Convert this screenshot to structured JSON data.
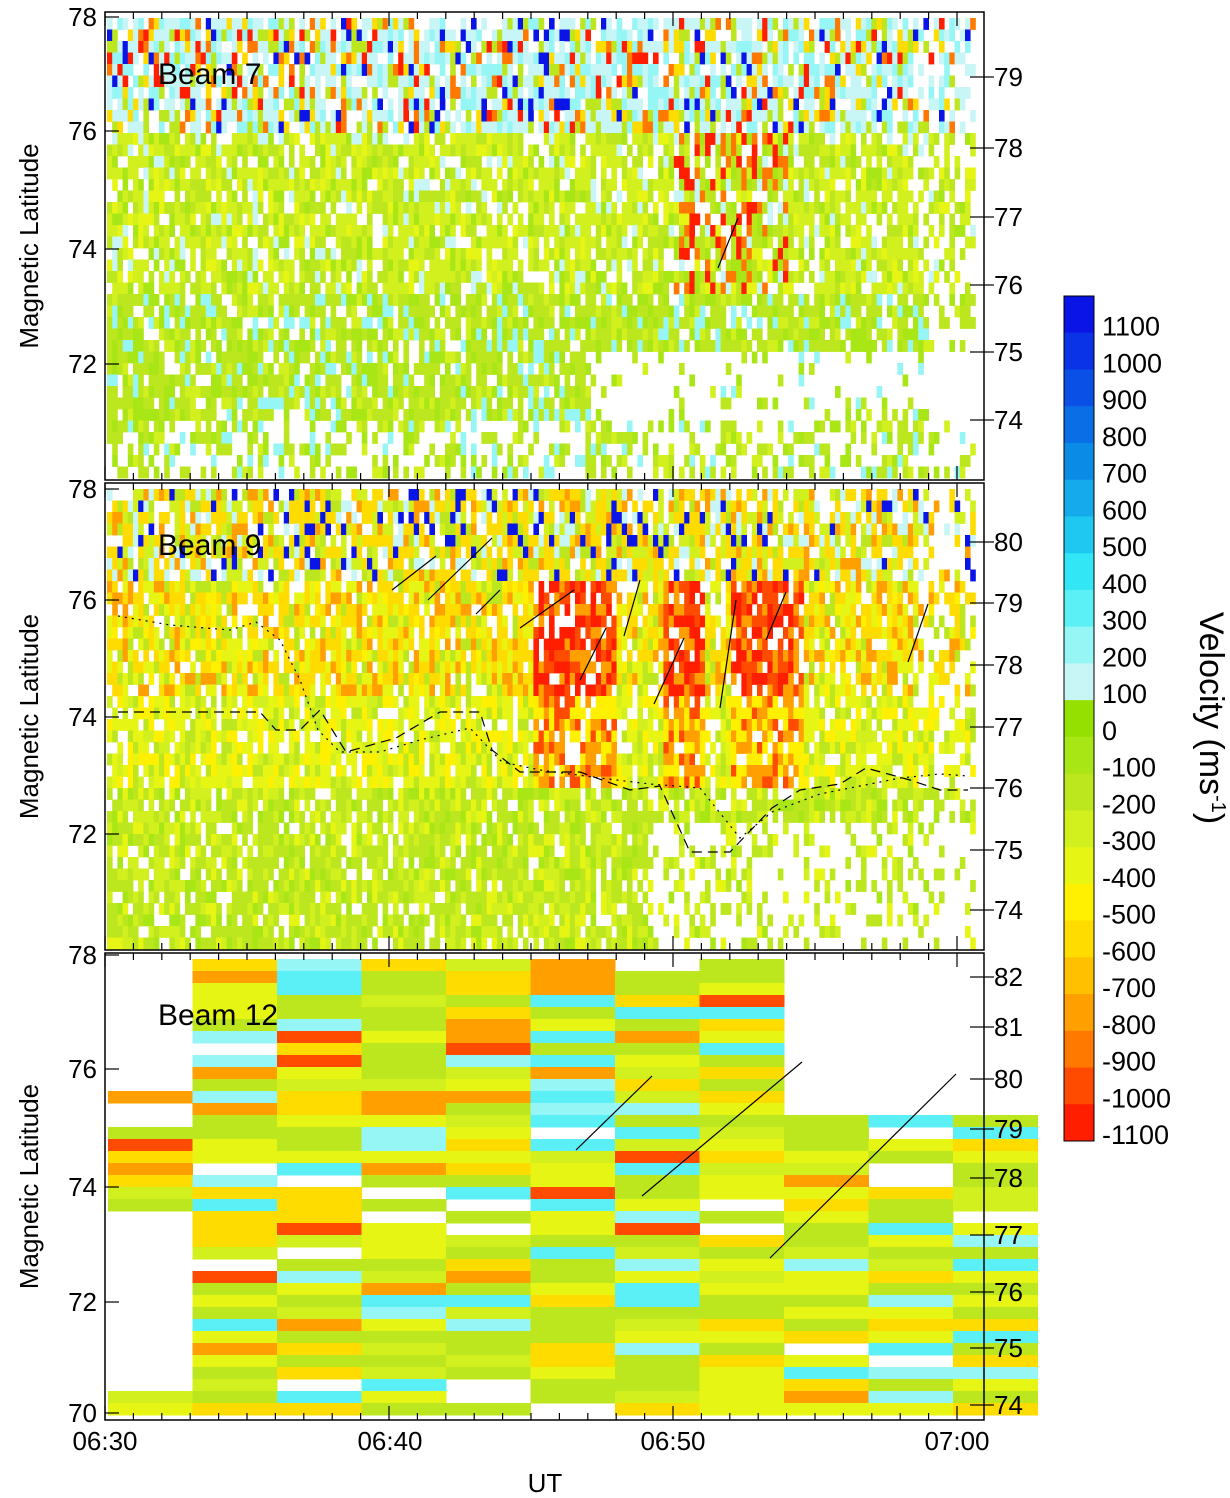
{
  "chart_data": {
    "type": "heatmap",
    "xlabel": "UT",
    "x_ticks": [
      "06:30",
      "06:40",
      "06:50",
      "07:00"
    ],
    "xlim_minutes": [
      0,
      31
    ],
    "colorbar": {
      "title": "Velocity (ms",
      "title_sup": "-1",
      "title_close": ")",
      "levels": [
        "1100",
        "1000",
        "900",
        "800",
        "700",
        "600",
        "500",
        "400",
        "300",
        "200",
        "100",
        "0",
        "-100",
        "-200",
        "-300",
        "-400",
        "-500",
        "-600",
        "-700",
        "-800",
        "-900",
        "-1000",
        "-1100"
      ],
      "colors": [
        "#0a14e6",
        "#0a32e6",
        "#0a50e6",
        "#0a6ee6",
        "#0a8ce6",
        "#14aaec",
        "#1ec8f0",
        "#32e6f5",
        "#5af0f5",
        "#96f5f5",
        "#c8f5f5",
        "#96e000",
        "#a8e616",
        "#bce61e",
        "#d2f01e",
        "#e6f514",
        "#fff000",
        "#ffdc00",
        "#ffc000",
        "#ffa000",
        "#ff7800",
        "#ff4b00",
        "#ff1e00"
      ]
    },
    "panels": [
      {
        "title": "Beam 7",
        "ylabel": "Magnetic Latitude",
        "ylim": [
          70.3,
          78
        ],
        "y_ticks": [
          "72",
          "74",
          "76",
          "78"
        ],
        "y_ticks_right": [
          "74",
          "75",
          "76",
          "77",
          "78",
          "79"
        ],
        "resolution": "fine"
      },
      {
        "title": "Beam 9",
        "ylabel": "Magnetic Latitude",
        "ylim": [
          70.3,
          78
        ],
        "y_ticks": [
          "72",
          "74",
          "76",
          "78"
        ],
        "y_ticks_right": [
          "74",
          "75",
          "76",
          "77",
          "78",
          "79",
          "80"
        ],
        "resolution": "fine"
      },
      {
        "title": "Beam 12",
        "ylabel": "Magnetic Latitude",
        "ylim": [
          70,
          78
        ],
        "y_ticks": [
          "70",
          "72",
          "74",
          "76",
          "78"
        ],
        "y_ticks_right": [
          "74",
          "75",
          "76",
          "77",
          "78",
          "79",
          "80",
          "81",
          "82"
        ],
        "resolution": "coarse"
      }
    ]
  }
}
